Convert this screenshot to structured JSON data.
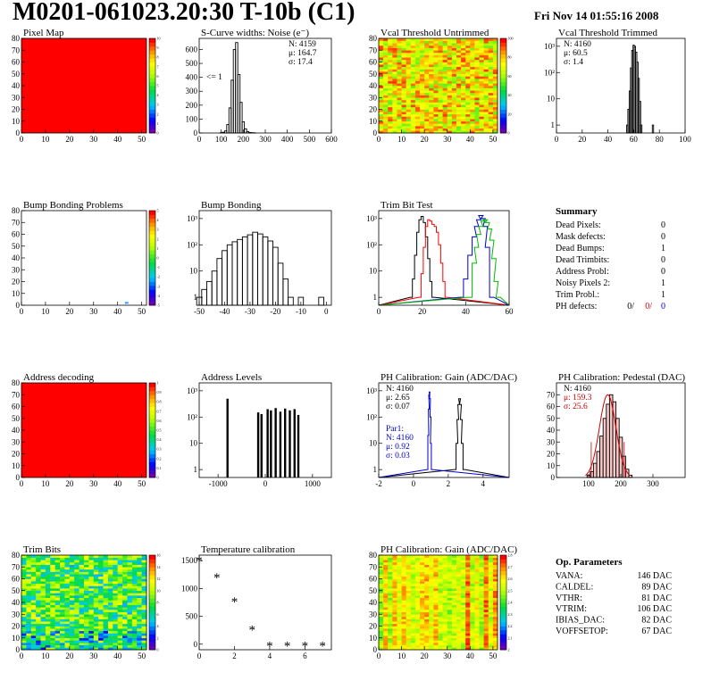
{
  "header": {
    "title": "M0201-061023.20:30 T-10b (C1)",
    "date": "Fri Nov 14 01:55:16 2008"
  },
  "colors": {
    "histogram_line": "#000000",
    "red": "#ff0000",
    "blue": "#0000cc",
    "green": "#00bb00",
    "pedestal_fill": "#cc0000"
  },
  "chart_data": [
    {
      "id": "pixel-map",
      "type": "heatmap",
      "title": "Pixel Map",
      "xlim": [
        0,
        52
      ],
      "ylim": [
        0,
        80
      ],
      "xticks": [
        "0",
        "10",
        "20",
        "30",
        "40",
        "50"
      ],
      "yticks": [
        "0",
        "10",
        "20",
        "30",
        "40",
        "50",
        "60",
        "70",
        "80"
      ],
      "colorbar": {
        "min": 0,
        "max": 10,
        "ticks": [
          "0",
          "1",
          "2",
          "3",
          "4",
          "5",
          "6",
          "7",
          "8",
          "9",
          "10"
        ]
      },
      "fill": "uniform",
      "value": 10
    },
    {
      "id": "scurve-widths",
      "type": "bar",
      "title": "S-Curve widths: Noise (e⁻)",
      "xlim": [
        0,
        600
      ],
      "ylim": [
        0,
        680
      ],
      "xticks": [
        "0",
        "100",
        "200",
        "300",
        "400",
        "500",
        "600"
      ],
      "yticks": [
        "0",
        "100",
        "200",
        "300",
        "400",
        "500",
        "600"
      ],
      "stats": [
        "N: 4159",
        "μ: 164.7",
        "σ: 17.4"
      ],
      "annotation": "<= 1",
      "x": [
        100,
        110,
        120,
        130,
        140,
        150,
        160,
        170,
        180,
        190,
        200,
        210,
        220,
        230,
        240,
        250
      ],
      "values": [
        2,
        5,
        15,
        60,
        180,
        380,
        600,
        650,
        420,
        220,
        80,
        30,
        10,
        4,
        2,
        1
      ]
    },
    {
      "id": "vcal-untrimmed",
      "type": "heatmap",
      "title": "Vcal Threshold Untrimmed",
      "xlim": [
        0,
        52
      ],
      "ylim": [
        0,
        80
      ],
      "xticks": [
        "0",
        "10",
        "20",
        "30",
        "40",
        "50"
      ],
      "yticks": [
        "0",
        "10",
        "20",
        "30",
        "40",
        "50",
        "60",
        "70",
        "80"
      ],
      "colorbar": {
        "min": 0,
        "max": 110,
        "ticks": [
          "0",
          "20",
          "40",
          "60",
          "80",
          "100"
        ]
      },
      "fill": "noise",
      "range": [
        60,
        105
      ]
    },
    {
      "id": "vcal-trimmed",
      "type": "bar",
      "title": "Vcal Threshold Trimmed",
      "log": true,
      "xlim": [
        0,
        100
      ],
      "ylim": [
        0.5,
        2000
      ],
      "xticks": [
        "0",
        "20",
        "40",
        "60",
        "80",
        "100"
      ],
      "yticks": [
        "1",
        "10",
        "10²",
        "10³"
      ],
      "stats": [
        "N: 4160",
        "μ: 60.5",
        "σ: 1.4"
      ],
      "x": [
        55,
        56,
        57,
        58,
        59,
        60,
        61,
        62,
        63,
        64,
        65,
        66,
        75
      ],
      "values": [
        1,
        4,
        20,
        150,
        700,
        1100,
        1000,
        600,
        250,
        60,
        8,
        1,
        1
      ]
    },
    {
      "id": "bump-problems",
      "type": "heatmap",
      "title": "Bump Bonding Problems",
      "xlim": [
        0,
        52
      ],
      "ylim": [
        0,
        80
      ],
      "xticks": [
        "0",
        "10",
        "20",
        "30",
        "40",
        "50"
      ],
      "yticks": [
        "0",
        "10",
        "20",
        "30",
        "40",
        "50",
        "60",
        "70",
        "80"
      ],
      "colorbar": {
        "min": -5,
        "max": 5,
        "ticks": [
          "-5",
          "-4",
          "-3",
          "-2",
          "-1",
          "0",
          "1",
          "2",
          "3",
          "4",
          "5"
        ]
      },
      "fill": "empty",
      "marks": [
        {
          "x": 43,
          "y": 2,
          "color": "#3399ff"
        }
      ]
    },
    {
      "id": "bump-bonding",
      "type": "bar",
      "title": "Bump Bonding",
      "log": true,
      "xlim": [
        -50,
        2
      ],
      "ylim": [
        0.5,
        2000
      ],
      "xticks": [
        "-50",
        "-40",
        "-30",
        "-20",
        "-10",
        "0"
      ],
      "yticks": [
        "1",
        "10",
        "10²",
        "10³"
      ],
      "x": [
        -50,
        -48,
        -46,
        -44,
        -42,
        -40,
        -38,
        -36,
        -34,
        -32,
        -30,
        -28,
        -26,
        -24,
        -22,
        -20,
        -18,
        -16,
        -14,
        -12,
        -10,
        -8,
        -6,
        -4,
        -2
      ],
      "values": [
        1,
        2,
        4,
        10,
        30,
        60,
        100,
        130,
        160,
        200,
        240,
        300,
        260,
        200,
        140,
        80,
        20,
        5,
        1,
        0,
        1,
        0,
        0,
        0,
        1
      ]
    },
    {
      "id": "trim-bit-test",
      "type": "line",
      "title": "Trim Bit Test",
      "log": true,
      "xlim": [
        0,
        60
      ],
      "ylim": [
        0.5,
        2000
      ],
      "xticks": [
        "0",
        "20",
        "40",
        "60"
      ],
      "yticks": [
        "1",
        "10",
        "10²",
        "10³"
      ],
      "series": [
        {
          "color": "#000000",
          "x": [
            15,
            16,
            17,
            18,
            19,
            20,
            21,
            22,
            23,
            24,
            25
          ],
          "values": [
            1,
            5,
            40,
            300,
            900,
            1200,
            700,
            200,
            30,
            4,
            1
          ]
        },
        {
          "color": "#ff0000",
          "x": [
            19,
            20,
            21,
            22,
            23,
            24,
            25,
            26,
            27,
            28,
            29,
            30,
            31
          ],
          "values": [
            1,
            8,
            80,
            500,
            900,
            800,
            600,
            500,
            300,
            100,
            20,
            4,
            1
          ]
        },
        {
          "color": "#0000cc",
          "x": [
            38,
            40,
            42,
            44,
            45,
            46,
            47,
            48,
            49,
            50,
            52
          ],
          "values": [
            1,
            5,
            40,
            200,
            500,
            900,
            1300,
            1000,
            500,
            80,
            1
          ]
        },
        {
          "color": "#00bb00",
          "x": [
            42,
            44,
            45,
            46,
            47,
            48,
            49,
            50,
            51,
            52,
            53,
            54,
            55
          ],
          "values": [
            1,
            20,
            80,
            250,
            500,
            800,
            900,
            700,
            400,
            150,
            30,
            4,
            1
          ]
        }
      ]
    },
    {
      "id": "address-decoding",
      "type": "heatmap",
      "title": "Address decoding",
      "xlim": [
        0,
        52
      ],
      "ylim": [
        0,
        80
      ],
      "xticks": [
        "0",
        "10",
        "20",
        "30",
        "40",
        "50"
      ],
      "yticks": [
        "0",
        "10",
        "20",
        "30",
        "40",
        "50",
        "60",
        "70",
        "80"
      ],
      "colorbar": {
        "min": 0,
        "max": 1,
        "ticks": [
          "0",
          "0.1",
          "0.2",
          "0.3",
          "0.4",
          "0.5",
          "0.6",
          "0.7",
          "0.8",
          "0.9",
          "1"
        ]
      },
      "fill": "uniform",
      "value": 1
    },
    {
      "id": "address-levels",
      "type": "bar",
      "title": "Address Levels",
      "log": true,
      "xlim": [
        -1400,
        1400
      ],
      "ylim": [
        0.5,
        2000
      ],
      "xticks": [
        "-1000",
        "0",
        "1000"
      ],
      "yticks": [
        "1",
        "10",
        "10²",
        "10³"
      ],
      "x": [
        -800,
        -150,
        -80,
        50,
        120,
        220,
        320,
        420,
        520,
        620,
        700
      ],
      "values": [
        500,
        150,
        130,
        200,
        180,
        220,
        160,
        210,
        180,
        200,
        120
      ]
    },
    {
      "id": "ph-gain",
      "type": "line",
      "title": "PH Calibration: Gain (ADC/DAC)",
      "log": true,
      "xlim": [
        -2,
        5.5
      ],
      "ylim": [
        0.5,
        2000
      ],
      "xticks": [
        "-2",
        "0",
        "2",
        "4"
      ],
      "yticks": [
        "1",
        "10",
        "10²",
        "10³"
      ],
      "stats": [
        "N: 4160",
        "μ: 2.65",
        "σ: 0.07"
      ],
      "stats2": [
        "Par1:",
        "N: 4160",
        "μ: 0.92",
        "σ: 0.03"
      ],
      "series": [
        {
          "color": "#000000",
          "x": [
            2.4,
            2.5,
            2.55,
            2.6,
            2.65,
            2.7,
            2.75,
            2.8,
            2.9
          ],
          "values": [
            1,
            10,
            80,
            300,
            500,
            300,
            80,
            10,
            1
          ]
        },
        {
          "color": "#0000cc",
          "x": [
            0.8,
            0.85,
            0.88,
            0.9,
            0.92,
            0.95,
            0.98,
            1.0,
            1.05
          ],
          "values": [
            1,
            20,
            200,
            700,
            900,
            500,
            100,
            10,
            1
          ]
        }
      ]
    },
    {
      "id": "ph-pedestal",
      "type": "bar",
      "title": "PH Calibration: Pedestal (DAC)",
      "xlim": [
        0,
        400
      ],
      "ylim": [
        0,
        80
      ],
      "xticks": [
        "100",
        "200",
        "300"
      ],
      "yticks": [
        "0",
        "10",
        "20",
        "30",
        "40",
        "50",
        "60",
        "70"
      ],
      "stats": [
        "N: 4160",
        "μ: 159.3",
        "σ: 25.6"
      ],
      "x": [
        100,
        110,
        120,
        130,
        140,
        150,
        160,
        170,
        180,
        190,
        200,
        210,
        220,
        230
      ],
      "values": [
        2,
        5,
        12,
        22,
        35,
        50,
        62,
        70,
        64,
        50,
        34,
        18,
        7,
        2
      ]
    },
    {
      "id": "trim-bits",
      "type": "heatmap",
      "title": "Trim Bits",
      "xlim": [
        0,
        52
      ],
      "ylim": [
        0,
        80
      ],
      "xticks": [
        "0",
        "10",
        "20",
        "30",
        "40",
        "50"
      ],
      "yticks": [
        "0",
        "10",
        "20",
        "30",
        "40",
        "50",
        "60",
        "70",
        "80"
      ],
      "colorbar": {
        "min": 0,
        "max": 16,
        "ticks": [
          "0",
          "2",
          "4",
          "6",
          "8",
          "10",
          "12",
          "14",
          "16"
        ]
      },
      "fill": "trim-noise",
      "range": [
        4,
        12
      ]
    },
    {
      "id": "temp-calibration",
      "type": "scatter",
      "title": "Temperature calibration",
      "xlim": [
        0,
        7.5
      ],
      "ylim": [
        -100,
        1600
      ],
      "xticks": [
        "0",
        "2",
        "4",
        "6"
      ],
      "yticks": [
        "0",
        "500",
        "1000",
        "1500"
      ],
      "x": [
        0,
        1,
        2,
        3,
        4,
        5,
        6,
        7
      ],
      "values": [
        1500,
        1200,
        770,
        260,
        -30,
        -30,
        -30,
        -30
      ]
    },
    {
      "id": "ph-gain-map",
      "type": "heatmap",
      "title": "PH Calibration: Gain (ADC/DAC)",
      "xlim": [
        0,
        52
      ],
      "ylim": [
        0,
        80
      ],
      "xticks": [
        "0",
        "10",
        "20",
        "30",
        "40",
        "50"
      ],
      "yticks": [
        "0",
        "10",
        "20",
        "30",
        "40",
        "50",
        "60",
        "70",
        "80"
      ],
      "colorbar": {
        "min": 2,
        "max": 2.8,
        "ticks": [
          "2",
          "2.1",
          "2.2",
          "2.3",
          "2.4",
          "2.5",
          "2.6",
          "2.7",
          "2.8"
        ]
      },
      "fill": "column-stripes",
      "range": [
        2.4,
        2.8
      ]
    }
  ],
  "summary": {
    "title": "Summary",
    "rows": [
      {
        "label": "Dead Pixels:",
        "value": "0"
      },
      {
        "label": "Mask defects:",
        "value": "0"
      },
      {
        "label": "Dead Bumps:",
        "value": "1"
      },
      {
        "label": "Dead Trimbits:",
        "value": "0"
      },
      {
        "label": "Address Probl:",
        "value": "0"
      },
      {
        "label": "Noisy Pixels 2:",
        "value": "1"
      },
      {
        "label": "Trim Probl.:",
        "value": "1"
      }
    ],
    "ph_label": "PH defects:",
    "ph_values": [
      "0/",
      "0/",
      "0"
    ]
  },
  "op_params": {
    "title": "Op. Parameters",
    "rows": [
      {
        "label": "VANA:",
        "value": "146 DAC"
      },
      {
        "label": "CALDEL:",
        "value": "89 DAC"
      },
      {
        "label": "VTHR:",
        "value": "81 DAC"
      },
      {
        "label": "VTRIM:",
        "value": "106 DAC"
      },
      {
        "label": "IBIAS_DAC:",
        "value": "82 DAC"
      },
      {
        "label": "VOFFSETOP:",
        "value": "67 DAC"
      }
    ]
  }
}
